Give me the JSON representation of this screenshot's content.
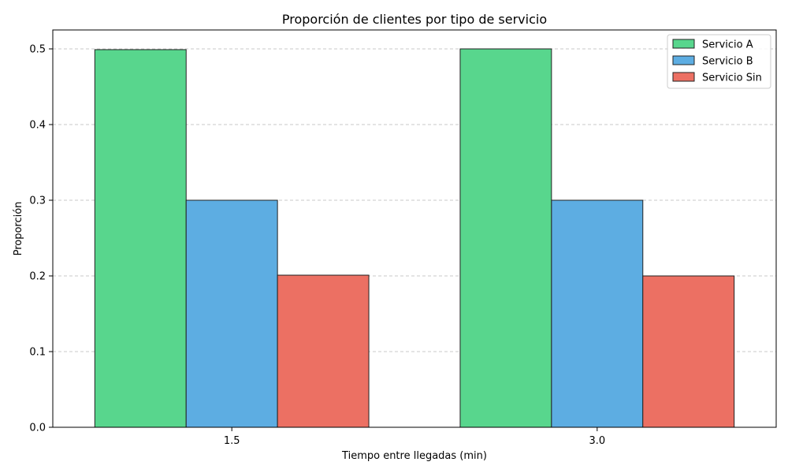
{
  "chart_data": {
    "type": "bar",
    "title": "Proporción de clientes por tipo de servicio",
    "xlabel": "Tiempo entre llegadas (min)",
    "ylabel": "Proporción",
    "categories": [
      "1.5",
      "3.0"
    ],
    "series": [
      {
        "name": "Servicio A",
        "values": [
          0.499,
          0.5
        ],
        "color": "#58d68d"
      },
      {
        "name": "Servicio B",
        "values": [
          0.3,
          0.3
        ],
        "color": "#5dade2"
      },
      {
        "name": "Servicio Sin",
        "values": [
          0.201,
          0.2
        ],
        "color": "#ec7063"
      }
    ],
    "ylim": [
      0,
      0.525
    ],
    "yticks": [
      "0.0",
      "0.1",
      "0.2",
      "0.3",
      "0.4",
      "0.5"
    ],
    "grid": "y-dashed",
    "legend_position": "top-right"
  }
}
